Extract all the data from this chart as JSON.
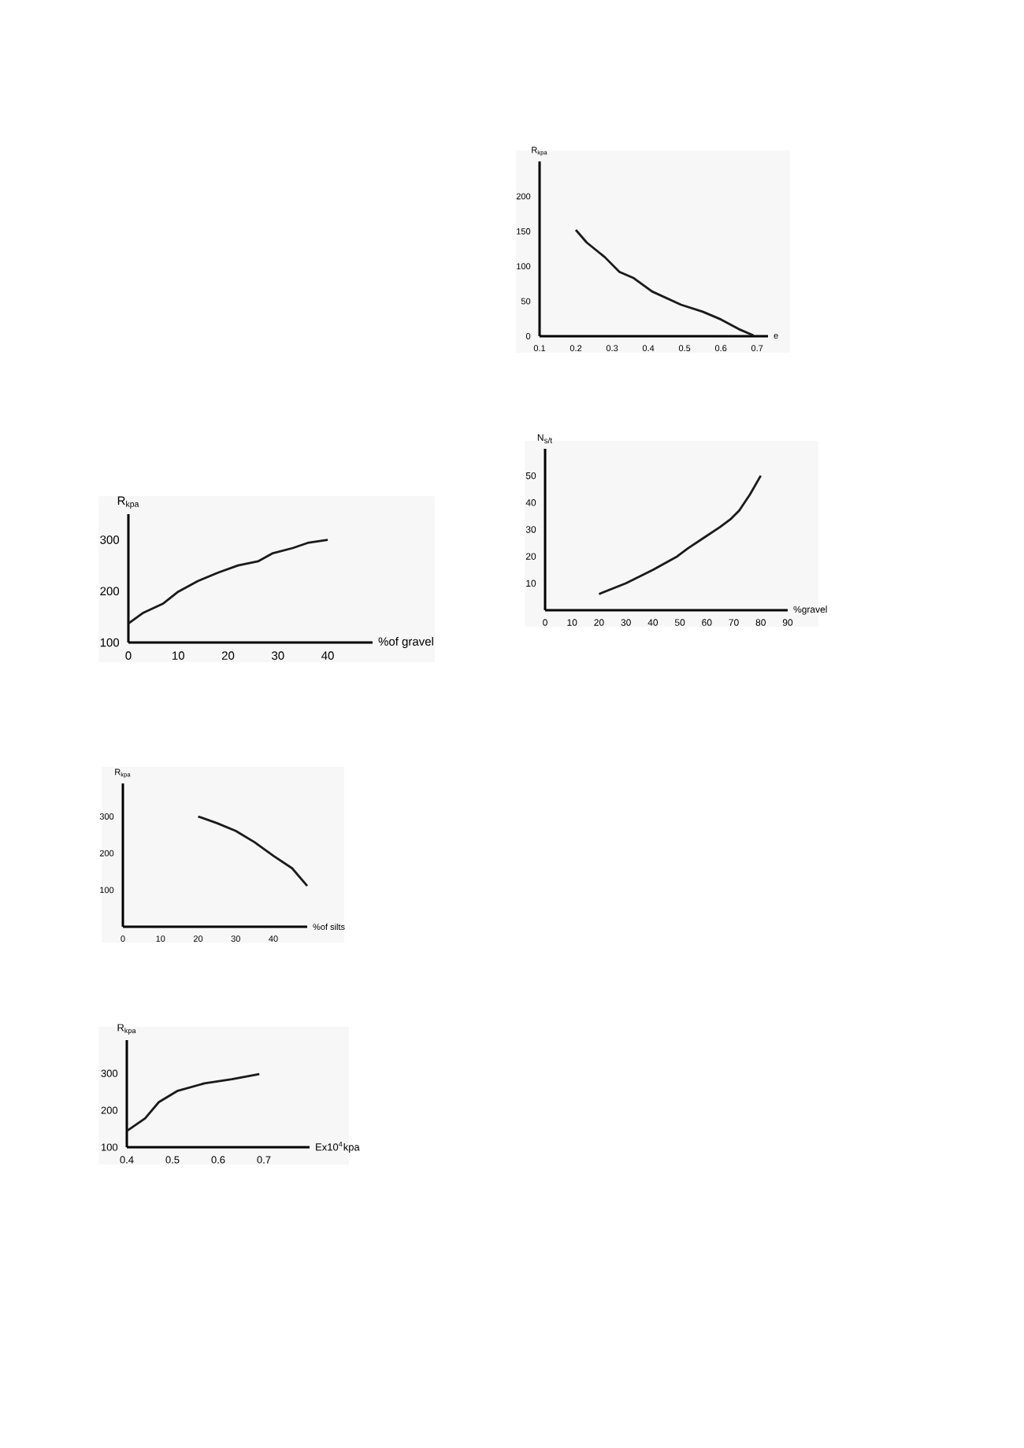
{
  "chart_data": [
    {
      "type": "line",
      "xlabel": "%of gravel",
      "ylabel": "R$_{kpa}$",
      "xlim": [
        0,
        49
      ],
      "ylim": [
        100,
        350
      ],
      "xticks": [
        0,
        10,
        20,
        30,
        40
      ],
      "yticks": [
        100,
        200,
        300
      ],
      "x": [
        0,
        3,
        7,
        10,
        14,
        18,
        22,
        26,
        29,
        33,
        36,
        40
      ],
      "series": [
        {
          "color": "#1a1a1a",
          "values": [
            137,
            158,
            176,
            199,
            220,
            236,
            250,
            258,
            274,
            284,
            294,
            300
          ]
        }
      ]
    },
    {
      "type": "line",
      "xlabel": "%of silts",
      "ylabel": "R$_{kpa}$",
      "xlim": [
        0,
        49
      ],
      "ylim": [
        0,
        390
      ],
      "xticks": [
        0,
        10,
        20,
        30,
        40
      ],
      "yticks": [
        100,
        200,
        300
      ],
      "x": [
        20,
        25,
        30,
        35,
        40,
        45,
        49
      ],
      "series": [
        {
          "color": "#1a1a1a",
          "values": [
            300,
            282,
            261,
            230,
            193,
            159,
            111
          ]
        }
      ]
    },
    {
      "type": "line",
      "xlabel": "Ex10$^{4}$kpa",
      "ylabel": "R$_{kpa}$",
      "xlim": [
        0.4,
        0.8
      ],
      "ylim": [
        100,
        390
      ],
      "xticks": [
        0.4,
        0.5,
        0.6,
        0.7
      ],
      "yticks": [
        100,
        200,
        300
      ],
      "x": [
        0.4,
        0.44,
        0.47,
        0.51,
        0.57,
        0.63,
        0.69
      ],
      "series": [
        {
          "color": "#1a1a1a",
          "values": [
            144,
            178,
            222,
            252,
            273,
            284,
            298
          ]
        }
      ]
    },
    {
      "type": "line",
      "xlabel": "e",
      "ylabel": "R$_{kpa}$",
      "xlim": [
        0.1,
        0.73
      ],
      "ylim": [
        0,
        250
      ],
      "xticks": [
        0.1,
        0.2,
        0.3,
        0.4,
        0.5,
        0.6,
        0.7
      ],
      "yticks": [
        0,
        50,
        100,
        150,
        200
      ],
      "x": [
        0.2,
        0.23,
        0.28,
        0.32,
        0.36,
        0.41,
        0.49,
        0.55,
        0.6,
        0.65,
        0.69
      ],
      "series": [
        {
          "color": "#1a1a1a",
          "values": [
            152,
            134,
            113,
            92,
            83,
            64,
            45,
            35,
            24,
            10,
            1
          ]
        }
      ]
    },
    {
      "type": "line",
      "xlabel": "%gravel",
      "ylabel": "N$_{s/t}$",
      "xlim": [
        0,
        90
      ],
      "ylim": [
        0,
        60
      ],
      "xticks": [
        0,
        10,
        20,
        30,
        40,
        50,
        60,
        70,
        80,
        90
      ],
      "yticks": [
        10,
        20,
        30,
        40,
        50
      ],
      "x": [
        20,
        30,
        40,
        49,
        53,
        59,
        65,
        69,
        72,
        76,
        80
      ],
      "series": [
        {
          "color": "#1a1a1a",
          "values": [
            6,
            10,
            15,
            20,
            23,
            27,
            31,
            34,
            37,
            43,
            50
          ]
        }
      ]
    }
  ]
}
